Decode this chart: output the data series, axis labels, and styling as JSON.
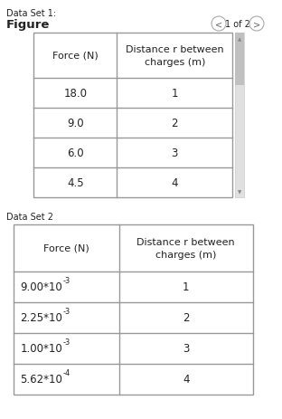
{
  "title1": "Data Set 1:",
  "subtitle1": "Figure",
  "nav_text_left": "<",
  "nav_text_mid": "1 of 2",
  "nav_text_right": ">",
  "table1_headers": [
    "Force (N)",
    "Distance r between\ncharges (m)"
  ],
  "table1_rows": [
    [
      "18.0",
      "1"
    ],
    [
      "9.0",
      "2"
    ],
    [
      "6.0",
      "3"
    ],
    [
      "4.5",
      "4"
    ]
  ],
  "title2": "Data Set 2",
  "table2_headers": [
    "Force (N)",
    "Distance r between\ncharges (m)"
  ],
  "table2_rows": [
    [
      "9.00*10-3",
      "1"
    ],
    [
      "2.25*10-3",
      "2"
    ],
    [
      "1.00*10-3",
      "3"
    ],
    [
      "5.62*10-4",
      "4"
    ]
  ],
  "bg_color": "#ffffff",
  "table_bg": "#ffffff",
  "border_color": "#999999",
  "text_color": "#222222",
  "nav_color": "#666666",
  "scrollbar_track": "#e0e0e0",
  "scrollbar_thumb": "#c0c0c0",
  "title1_fontsize": 7.0,
  "figure_fontsize": 9.5,
  "nav_fontsize": 7.0,
  "header_fontsize": 8.0,
  "cell_fontsize": 8.5,
  "t2_label_fontsize": 7.0
}
